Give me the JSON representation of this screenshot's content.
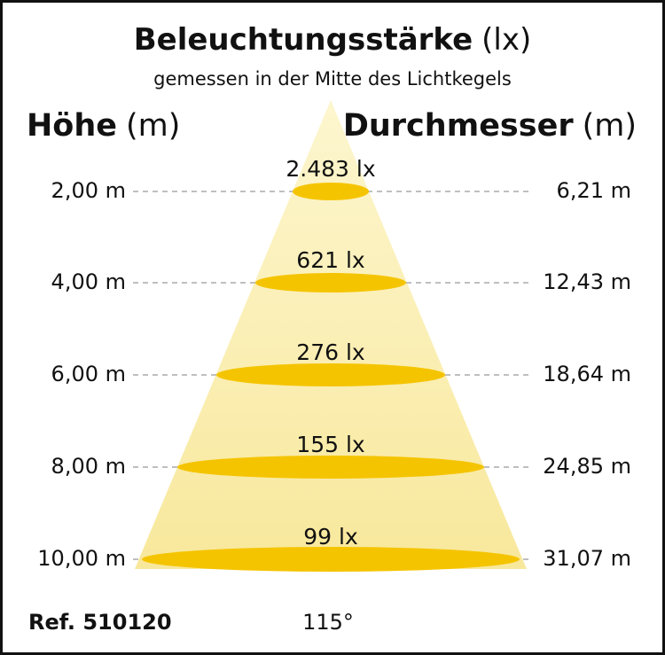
{
  "header": {
    "title": "Beleuchtungsstärke",
    "title_unit": "(lx)",
    "subtitle": "gemessen in der Mitte des Lichtkegels",
    "left_heading": "Höhe",
    "left_unit": "(m)",
    "right_heading": "Durchmesser",
    "right_unit": "(m)"
  },
  "rows": [
    {
      "height": "2,00 m",
      "illuminance": "2.483 lx",
      "diameter": "6,21 m"
    },
    {
      "height": "4,00 m",
      "illuminance": "621 lx",
      "diameter": "12,43 m"
    },
    {
      "height": "6,00 m",
      "illuminance": "276 lx",
      "diameter": "18,64 m"
    },
    {
      "height": "8,00 m",
      "illuminance": "155 lx",
      "diameter": "24,85 m"
    },
    {
      "height": "10,00 m",
      "illuminance": "99 lx",
      "diameter": "31,07 m"
    }
  ],
  "footer": {
    "reference": "Ref. 510120",
    "angle": "115°"
  }
}
